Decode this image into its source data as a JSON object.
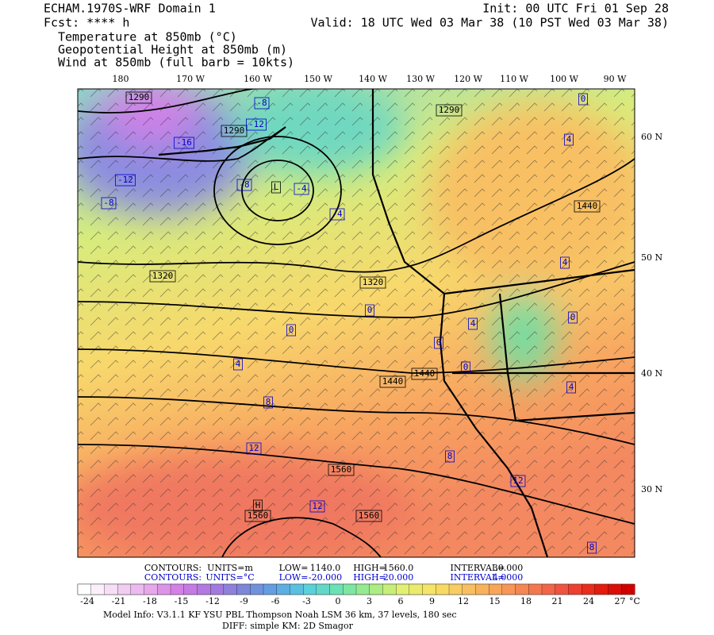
{
  "header": {
    "title": "ECHAM.1970S-WRF Domain 1",
    "forecast": "Fcst: **** h",
    "init": "Init: 00 UTC Fri 01 Sep 28",
    "valid": "Valid: 18 UTC Wed 03 Mar 38 (10 PST Wed 03 Mar 38)",
    "fields": [
      "Temperature at 850mb (°C)",
      "Geopotential Height at 850mb (m)",
      "Wind at 850mb (full barb = 10kts)"
    ],
    "field_colors": [
      "#0000cc",
      "#000000",
      "#000000"
    ]
  },
  "map": {
    "longitudes": [
      "180",
      "170 W",
      "160 W",
      "150 W",
      "140 W",
      "130 W",
      "120 W",
      "110 W",
      "100 W",
      "90 W"
    ],
    "latitudes": [
      "60 N",
      "50 N",
      "40 N",
      "30 N"
    ],
    "height_labels": [
      "1290",
      "1290",
      "1290",
      "1320",
      "1320",
      "1440",
      "1440",
      "1440",
      "1560",
      "1560",
      "1560",
      "L",
      "H"
    ],
    "temperature_labels": [
      "-16",
      "-12",
      "-8",
      "-8",
      "-4",
      "-4",
      "-8",
      "-12",
      "0",
      "4",
      "4",
      "0",
      "0",
      "4",
      "8",
      "12",
      "12",
      "8",
      "12",
      "8",
      "4",
      "0",
      "0",
      "4",
      "0"
    ]
  },
  "contours": {
    "height": [
      "CONTOURS:",
      "UNITS=m",
      "LOW=",
      "1140.0",
      "HIGH=",
      "1560.0",
      "INTERVAL=",
      "30.000"
    ],
    "temperature": [
      "CONTOURS:",
      "UNITS=°C",
      "LOW=",
      "-20.000",
      "HIGH=",
      "20.000",
      "INTERVAL=",
      "4.0000"
    ]
  },
  "colorbar": {
    "labels": [
      "-24",
      "-21",
      "-18",
      "-15",
      "-12",
      "-9",
      "-6",
      "-3",
      "0",
      "3",
      "6",
      "9",
      "12",
      "15",
      "18",
      "21",
      "24",
      "27"
    ],
    "unit": "°C",
    "colors": [
      "#ffffff",
      "#f4d8f4",
      "#e8aaec",
      "#d27ce4",
      "#a878e0",
      "#7c86d8",
      "#5ea4e4",
      "#58d0dc",
      "#6ee4b0",
      "#a4ec84",
      "#e4f070",
      "#f8e064",
      "#f8c060",
      "#f8a058",
      "#f47c50",
      "#f05040",
      "#e82010",
      "#d00000"
    ]
  },
  "footer": [
    "Model Info: V3.1.1    KF     YSU PBL   Thompson     Noah LSM   36 km,    37 levels,   180 sec",
    "DIFF: simple KM: 2D Smagor"
  ]
}
